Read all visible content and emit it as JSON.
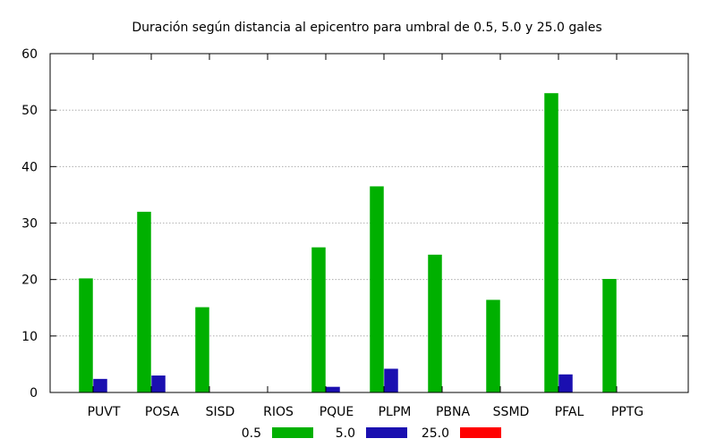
{
  "chart_data": {
    "type": "bar",
    "title": "Duración según distancia al epicentro para umbral de 0.5, 5.0 y 25.0 gales",
    "xlabel": "",
    "ylabel": "",
    "ylim": [
      0,
      60
    ],
    "yticks": [
      0,
      10,
      20,
      30,
      40,
      50,
      60
    ],
    "grid": true,
    "legend_position": "bottom",
    "categories": [
      "PUVT",
      "POSA",
      "SISD",
      "RIOS",
      "PQUE",
      "PLPM",
      "PBNA",
      "SSMD",
      "PFAL",
      "PPTG"
    ],
    "series": [
      {
        "name": "0.5",
        "color": "#00b000",
        "values": [
          20.2,
          32.0,
          15.1,
          0,
          25.7,
          36.5,
          24.4,
          16.4,
          53.0,
          20.1
        ]
      },
      {
        "name": "5.0",
        "color": "#1a0fb0",
        "values": [
          2.4,
          3.0,
          0,
          0,
          1.0,
          4.2,
          0,
          0,
          3.2,
          0
        ]
      },
      {
        "name": "25.0",
        "color": "#ff0000",
        "values": [
          0,
          0,
          0,
          0,
          0,
          0,
          0,
          0,
          0,
          0
        ]
      }
    ]
  }
}
